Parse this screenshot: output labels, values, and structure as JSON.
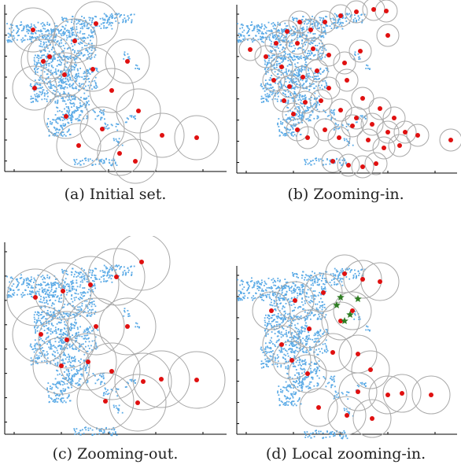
{
  "figure": {
    "panels": [
      {
        "id": "a",
        "caption": "(a) Initial set."
      },
      {
        "id": "b",
        "caption": "(b) Zooming-in."
      },
      {
        "id": "c",
        "caption": "(c) Zooming-out."
      },
      {
        "id": "d",
        "caption": "(d) Local zooming-in."
      }
    ]
  },
  "colors": {
    "points": "#5aaae6",
    "centers": "#e01010",
    "circles": "#a8a8a8",
    "stars": "#2e7d22",
    "axes": "#000000"
  },
  "chart_data": [
    {
      "type": "scatter",
      "panel": "a",
      "description_series": [
        "data points",
        "representative centers",
        "coverage circles"
      ],
      "centers": [
        [
          42,
          38
        ],
        [
          95,
          52
        ],
        [
          122,
          30
        ],
        [
          55,
          78
        ],
        [
          82,
          95
        ],
        [
          118,
          88
        ],
        [
          162,
          78
        ],
        [
          142,
          115
        ],
        [
          84,
          148
        ],
        [
          176,
          141
        ],
        [
          130,
          164
        ],
        [
          100,
          185
        ],
        [
          152,
          195
        ],
        [
          206,
          172
        ],
        [
          250,
          175
        ],
        [
          172,
          205
        ],
        [
          44,
          112
        ],
        [
          63,
          72
        ]
      ]
    },
    {
      "type": "scatter",
      "panel": "b",
      "description_series": [
        "data points",
        "representative centers",
        "coverage circles"
      ],
      "centers": [
        [
          25,
          63
        ],
        [
          45,
          72
        ],
        [
          58,
          55
        ],
        [
          72,
          40
        ],
        [
          88,
          28
        ],
        [
          102,
          38
        ],
        [
          120,
          28
        ],
        [
          140,
          20
        ],
        [
          160,
          15
        ],
        [
          182,
          12
        ],
        [
          198,
          14
        ],
        [
          200,
          45
        ],
        [
          165,
          65
        ],
        [
          145,
          80
        ],
        [
          125,
          70
        ],
        [
          105,
          62
        ],
        [
          85,
          55
        ],
        [
          65,
          85
        ],
        [
          55,
          102
        ],
        [
          75,
          110
        ],
        [
          92,
          98
        ],
        [
          110,
          90
        ],
        [
          125,
          112
        ],
        [
          148,
          102
        ],
        [
          168,
          125
        ],
        [
          190,
          138
        ],
        [
          208,
          150
        ],
        [
          222,
          168
        ],
        [
          200,
          168
        ],
        [
          180,
          158
        ],
        [
          160,
          150
        ],
        [
          140,
          140
        ],
        [
          115,
          128
        ],
        [
          95,
          130
        ],
        [
          80,
          145
        ],
        [
          85,
          165
        ],
        [
          98,
          175
        ],
        [
          120,
          165
        ],
        [
          138,
          175
        ],
        [
          155,
          160
        ],
        [
          175,
          178
        ],
        [
          195,
          188
        ],
        [
          215,
          185
        ],
        [
          238,
          172
        ],
        [
          280,
          178
        ],
        [
          130,
          205
        ],
        [
          150,
          210
        ],
        [
          168,
          212
        ],
        [
          185,
          208
        ],
        [
          68,
          128
        ]
      ]
    },
    {
      "type": "scatter",
      "panel": "c",
      "description_series": [
        "data points",
        "representative centers",
        "coverage circles"
      ],
      "centers": [
        [
          45,
          78
        ],
        [
          80,
          70
        ],
        [
          115,
          62
        ],
        [
          148,
          52
        ],
        [
          180,
          33
        ],
        [
          52,
          125
        ],
        [
          85,
          132
        ],
        [
          122,
          115
        ],
        [
          162,
          115
        ],
        [
          78,
          165
        ],
        [
          112,
          160
        ],
        [
          142,
          172
        ],
        [
          182,
          185
        ],
        [
          205,
          182
        ],
        [
          250,
          183
        ],
        [
          134,
          210
        ],
        [
          175,
          212
        ]
      ]
    },
    {
      "type": "scatter",
      "panel": "d",
      "description_series": [
        "data points",
        "representative centers",
        "coverage circles",
        "local zoom stars"
      ],
      "centers": [
        [
          52,
          95
        ],
        [
          82,
          82
        ],
        [
          118,
          72
        ],
        [
          145,
          48
        ],
        [
          168,
          55
        ],
        [
          190,
          58
        ],
        [
          155,
          95
        ],
        [
          140,
          108
        ],
        [
          100,
          118
        ],
        [
          65,
          138
        ],
        [
          78,
          158
        ],
        [
          98,
          175
        ],
        [
          130,
          148
        ],
        [
          162,
          150
        ],
        [
          178,
          170
        ],
        [
          162,
          198
        ],
        [
          200,
          202
        ],
        [
          218,
          200
        ],
        [
          112,
          218
        ],
        [
          148,
          228
        ],
        [
          180,
          232
        ],
        [
          255,
          202
        ]
      ],
      "stars": [
        [
          140,
          78
        ],
        [
          162,
          80
        ],
        [
          135,
          88
        ],
        [
          152,
          100
        ],
        [
          145,
          108
        ]
      ]
    }
  ]
}
